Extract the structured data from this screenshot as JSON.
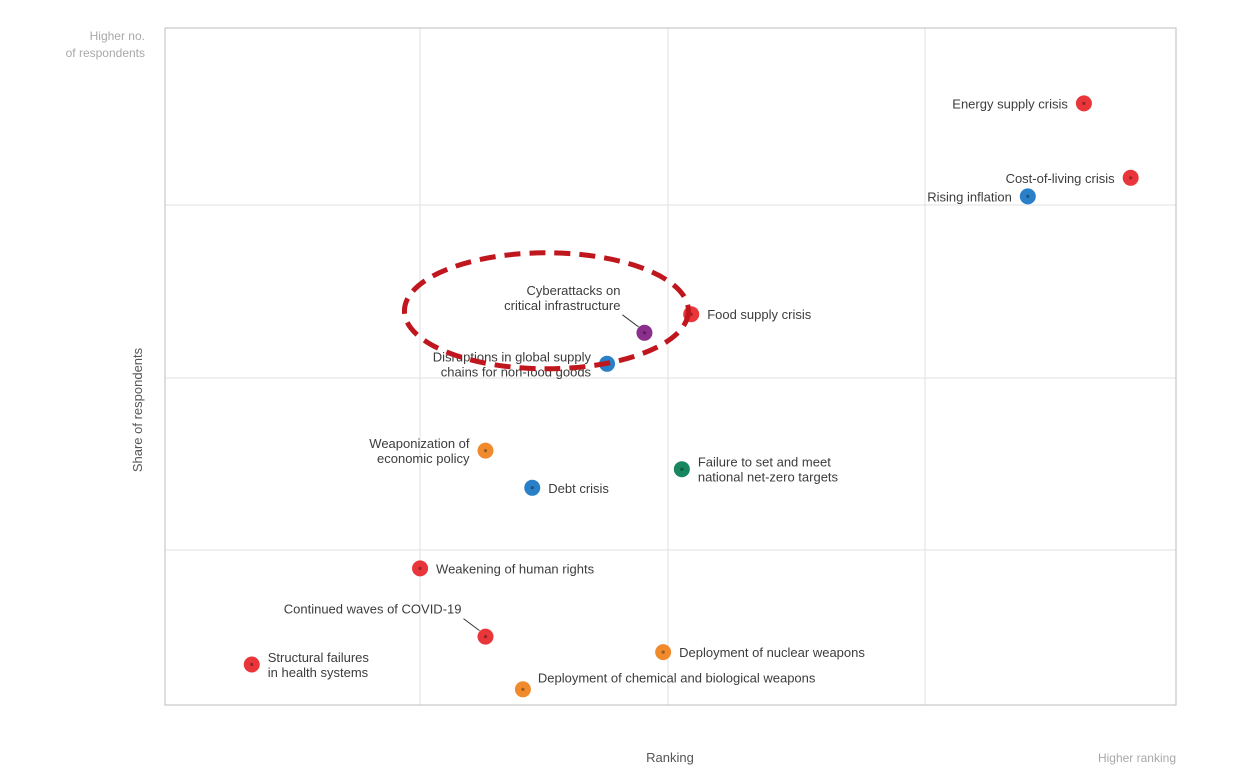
{
  "chart_data": {
    "type": "scatter",
    "title": "",
    "xlabel": "Ranking",
    "ylabel": "Share of respondents",
    "x_high_label": "Higher ranking",
    "y_high_label_line1": "Higher no.",
    "y_high_label_line2": "of respondents",
    "xlim": [
      0,
      10
    ],
    "ylim": [
      0,
      10
    ],
    "grid": true,
    "tick_labels_shown": false,
    "category_colors": {
      "economic": "#e8363a",
      "societal": "#e8363a",
      "geopolitical": "#f08a2c",
      "technological": "#8a2f8c",
      "environmental": "#17875f",
      "economic_blue": "#2a7fc9"
    },
    "points": [
      {
        "name": "Energy supply crisis",
        "lines": [
          "Energy supply crisis"
        ],
        "x": 9.4,
        "y": 9.3,
        "color": "#e8363a",
        "label_side": "left"
      },
      {
        "name": "Cost-of-living crisis",
        "lines": [
          "Cost-of-living crisis"
        ],
        "x": 9.9,
        "y": 8.1,
        "color": "#e8363a",
        "label_side": "left"
      },
      {
        "name": "Rising inflation",
        "lines": [
          "Rising inflation"
        ],
        "x": 8.8,
        "y": 7.8,
        "color": "#2a7fc9",
        "label_side": "left"
      },
      {
        "name": "Food supply crisis",
        "lines": [
          "Food supply crisis"
        ],
        "x": 5.2,
        "y": 5.9,
        "color": "#e8363a",
        "label_side": "right"
      },
      {
        "name": "Cyberattacks on critical infrastructure",
        "lines": [
          "Cyberattacks on",
          "critical infrastructure"
        ],
        "x": 4.7,
        "y": 5.6,
        "color": "#8a2f8c",
        "label_side": "upper-left",
        "leader": true,
        "highlighted": true
      },
      {
        "name": "Disruptions in global supply chains for non-food goods",
        "lines": [
          "Disruptions in global supply",
          "chains for non-food goods"
        ],
        "x": 4.3,
        "y": 5.1,
        "color": "#2a7fc9",
        "label_side": "left"
      },
      {
        "name": "Weaponization of economic policy",
        "lines": [
          "Weaponization of",
          "economic policy"
        ],
        "x": 3.0,
        "y": 3.7,
        "color": "#f08a2c",
        "label_side": "left"
      },
      {
        "name": "Debt crisis",
        "lines": [
          "Debt crisis"
        ],
        "x": 3.5,
        "y": 3.1,
        "color": "#2a7fc9",
        "label_side": "right"
      },
      {
        "name": "Failure to set and meet national net-zero targets",
        "lines": [
          "Failure to set and meet",
          "national net-zero targets"
        ],
        "x": 5.1,
        "y": 3.4,
        "color": "#17875f",
        "label_side": "right"
      },
      {
        "name": "Weakening of human rights",
        "lines": [
          "Weakening of human rights"
        ],
        "x": 2.3,
        "y": 1.8,
        "color": "#e8363a",
        "label_side": "right"
      },
      {
        "name": "Continued waves of COVID-19",
        "lines": [
          "Continued waves of COVID-19"
        ],
        "x": 3.0,
        "y": 0.7,
        "color": "#e8363a",
        "label_side": "upper-left",
        "leader": true
      },
      {
        "name": "Deployment of nuclear weapons",
        "lines": [
          "Deployment of nuclear weapons"
        ],
        "x": 4.9,
        "y": 0.45,
        "color": "#f08a2c",
        "label_side": "right"
      },
      {
        "name": "Structural failures in health systems",
        "lines": [
          "Structural failures",
          "in health systems"
        ],
        "x": 0.5,
        "y": 0.25,
        "color": "#e8363a",
        "label_side": "right"
      },
      {
        "name": "Deployment of chemical and biological weapons",
        "lines": [
          "Deployment of chemical and biological weapons"
        ],
        "x": 3.4,
        "y": -0.15,
        "color": "#f08a2c",
        "label_side": "right-up"
      }
    ],
    "highlight": {
      "shape": "dashed-ellipse",
      "color": "#c0161d",
      "target": "Cyberattacks on critical infrastructure"
    }
  }
}
